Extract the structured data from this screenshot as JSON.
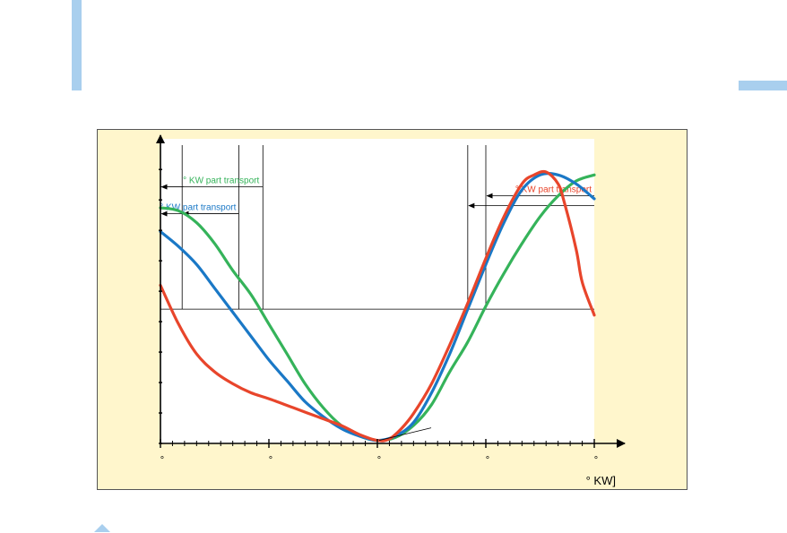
{
  "chart_data": {
    "type": "line",
    "title": "",
    "xlabel": "° KW]",
    "ylabel": "",
    "xlim": [
      0,
      360
    ],
    "ylim": [
      0,
      100
    ],
    "x_ticks": [
      "°",
      "°",
      "°",
      "°",
      "°"
    ],
    "x_tick_values": [
      0,
      90,
      180,
      270,
      360
    ],
    "grid": false,
    "legend": "none",
    "threshold_y": 45,
    "series": [
      {
        "name": "",
        "color": "#e8452b",
        "x": [
          0,
          15,
          30,
          45,
          60,
          75,
          90,
          110,
          130,
          150,
          165,
          180,
          190,
          200,
          210,
          225,
          240,
          255,
          270,
          285,
          300,
          310,
          320,
          330,
          335,
          345,
          350,
          360
        ],
        "y": [
          53,
          40,
          30,
          24,
          20,
          17,
          15,
          12,
          9,
          6,
          3,
          1,
          1.5,
          5,
          10,
          20,
          33,
          47,
          62,
          76,
          87,
          90,
          91,
          87,
          81,
          65,
          54,
          43
        ]
      },
      {
        "name": "",
        "color": "#1a78c6",
        "x": [
          0,
          15,
          30,
          45,
          60,
          75,
          90,
          105,
          120,
          135,
          150,
          165,
          180,
          195,
          210,
          225,
          240,
          255,
          270,
          285,
          300,
          315,
          330,
          345,
          360
        ],
        "y": [
          71,
          66,
          60,
          52,
          44,
          36,
          28,
          21,
          14,
          9,
          5,
          2.5,
          1,
          2.5,
          7,
          17,
          30,
          45,
          60,
          74,
          85,
          90,
          90,
          87,
          82
        ]
      },
      {
        "name": "",
        "color": "#35b35a",
        "x": [
          0,
          15,
          30,
          45,
          60,
          75,
          90,
          105,
          120,
          135,
          150,
          165,
          180,
          195,
          210,
          225,
          240,
          255,
          270,
          285,
          300,
          315,
          330,
          345,
          360
        ],
        "y": [
          79,
          78,
          74,
          67,
          58,
          50,
          40,
          30,
          20,
          12,
          6,
          2.5,
          1,
          2,
          6,
          13,
          24,
          34,
          46,
          57,
          67,
          76,
          83,
          88,
          90
        ]
      }
    ],
    "annotations": [
      {
        "text": "° KW part transport",
        "color": "#35b35a",
        "from_x": 0,
        "to_x": 85,
        "y": 86
      },
      {
        "text": "° KW part transport",
        "color": "#1a78c6",
        "from_x": 18,
        "to_x": 65,
        "y": 77
      },
      {
        "text": "° KW part transport",
        "color": "#e8452b",
        "from_x": 270,
        "to_x": 360,
        "y": 83
      }
    ],
    "vertical_markers": [
      18,
      65,
      85,
      255,
      270
    ]
  }
}
